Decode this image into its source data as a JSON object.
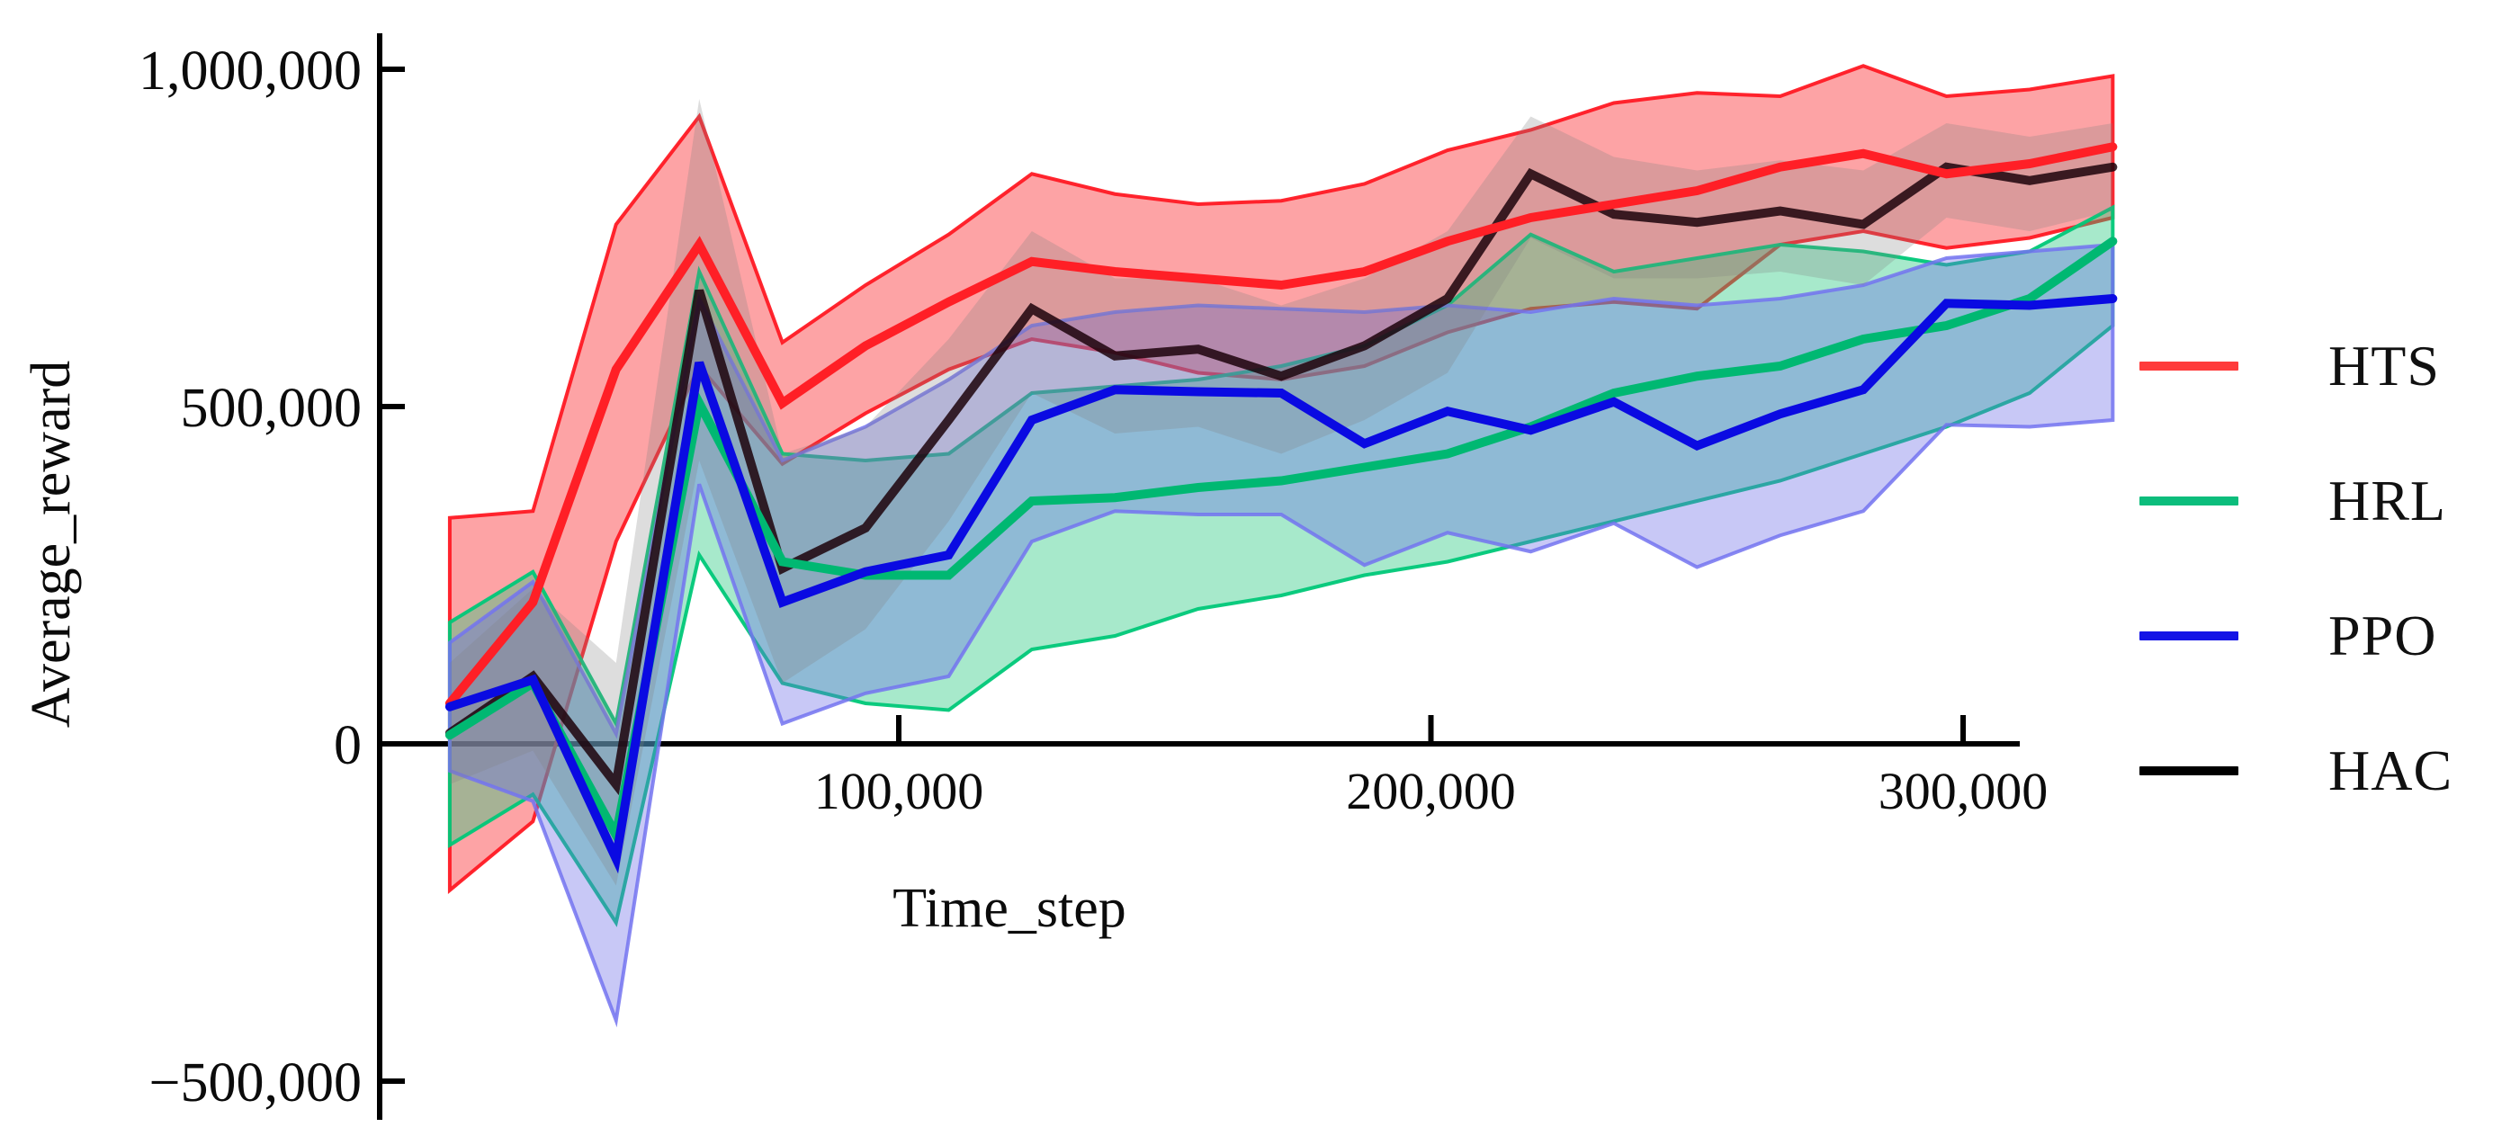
{
  "figure": {
    "background": "#ffffff",
    "axis_color": "#000000",
    "x_axis_title": "Time_step",
    "y_axis_title": "Average_reward",
    "legend": {
      "position": "right"
    }
  },
  "chart_data": {
    "type": "line",
    "title": "",
    "xlabel": "Time_step",
    "ylabel": "Average_reward",
    "grid": false,
    "legend_position": "right",
    "xlim": [
      0,
      335000
    ],
    "ylim": [
      -560000,
      1060000
    ],
    "x_ticks": [
      {
        "value": 100000,
        "label": "100,000"
      },
      {
        "value": 200000,
        "label": "200,000"
      },
      {
        "value": 300000,
        "label": "300,000"
      }
    ],
    "y_ticks": [
      {
        "value": 1000000,
        "label": "1,000,000"
      },
      {
        "value": 500000,
        "label": "500,000"
      },
      {
        "value": 0,
        "label": "0"
      },
      {
        "value": -500000,
        "label": "−500,000"
      }
    ],
    "x": [
      15625,
      31250,
      46875,
      62500,
      78125,
      93750,
      109375,
      125000,
      140625,
      156250,
      171875,
      187500,
      203125,
      218750,
      234375,
      250000,
      265625,
      281250,
      296875,
      312500,
      328125
    ],
    "series": [
      {
        "name": "HTS",
        "legend_color": "#ff3b3b",
        "line_color": "#ff1f26",
        "fill_color": "rgba(250,45,50,0.44)",
        "edge_color": "rgba(255,25,35,0.95)",
        "values": [
          60000,
          210000,
          555000,
          740000,
          505000,
          590000,
          655000,
          715000,
          700000,
          690000,
          680000,
          700000,
          745000,
          780000,
          800000,
          820000,
          855000,
          875000,
          845000,
          860000,
          885000
        ],
        "upper": [
          335000,
          345000,
          770000,
          930000,
          595000,
          680000,
          755000,
          845000,
          815000,
          800000,
          805000,
          830000,
          880000,
          910000,
          950000,
          965000,
          960000,
          1005000,
          960000,
          970000,
          990000
        ],
        "lower": [
          -217000,
          -115000,
          300000,
          560000,
          415000,
          490000,
          555000,
          600000,
          580000,
          550000,
          540000,
          560000,
          610000,
          645000,
          655000,
          645000,
          740000,
          760000,
          735000,
          750000,
          780000
        ]
      },
      {
        "name": "HRL",
        "legend_color": "#0cbd7c",
        "line_color": "#00b872",
        "fill_color": "rgba(35,200,125,0.40)",
        "edge_color": "rgba(0,200,120,0.95)",
        "values": [
          13000,
          90000,
          -135000,
          505000,
          270000,
          250000,
          250000,
          360000,
          365000,
          380000,
          390000,
          410000,
          430000,
          470000,
          520000,
          545000,
          560000,
          600000,
          620000,
          660000,
          745000
        ],
        "upper": [
          180000,
          255000,
          30000,
          700000,
          430000,
          420000,
          430000,
          520000,
          530000,
          540000,
          560000,
          590000,
          650000,
          755000,
          700000,
          720000,
          740000,
          730000,
          710000,
          730000,
          795000
        ],
        "lower": [
          -150000,
          -75000,
          -265000,
          280000,
          90000,
          60000,
          50000,
          140000,
          160000,
          200000,
          220000,
          250000,
          270000,
          300000,
          330000,
          360000,
          390000,
          430000,
          470000,
          520000,
          620000
        ]
      },
      {
        "name": "PPO",
        "legend_color": "#1414e6",
        "line_color": "#0a0ae2",
        "fill_color": "rgba(102,102,230,0.36)",
        "edge_color": "rgba(115,115,240,0.85)",
        "values": [
          55000,
          95000,
          -170000,
          565000,
          210000,
          255000,
          280000,
          480000,
          525000,
          522000,
          520000,
          445000,
          493000,
          465000,
          507000,
          442000,
          489000,
          525000,
          653000,
          650000,
          660000
        ],
        "upper": [
          150000,
          240000,
          15000,
          660000,
          420000,
          470000,
          540000,
          620000,
          640000,
          650000,
          645000,
          640000,
          650000,
          640000,
          660000,
          650000,
          660000,
          680000,
          720000,
          730000,
          740000
        ],
        "lower": [
          -40000,
          -85000,
          -410000,
          385000,
          30000,
          75000,
          100000,
          300000,
          345000,
          340000,
          340000,
          265000,
          313000,
          285000,
          327000,
          262000,
          309000,
          345000,
          473000,
          470000,
          480000
        ]
      },
      {
        "name": "HAC",
        "legend_color": "#000000",
        "line_color": "rgba(28,2,10,0.85)",
        "fill_color": "rgba(128,128,128,0.27)",
        "edge_color": "rgba(0,0,0,0)",
        "values": [
          16000,
          100000,
          -60000,
          672000,
          260000,
          320000,
          480000,
          645000,
          575000,
          585000,
          545000,
          590000,
          660000,
          845000,
          785000,
          773000,
          790000,
          770000,
          855000,
          835000,
          855000
        ],
        "upper": [
          120000,
          230000,
          120000,
          956000,
          430000,
          470000,
          600000,
          760000,
          690000,
          690000,
          650000,
          690000,
          760000,
          930000,
          870000,
          850000,
          865000,
          850000,
          920000,
          900000,
          920000
        ],
        "lower": [
          -60000,
          -10000,
          -210000,
          420000,
          90000,
          170000,
          330000,
          520000,
          460000,
          470000,
          430000,
          480000,
          550000,
          750000,
          690000,
          690000,
          700000,
          680000,
          780000,
          760000,
          790000
        ]
      }
    ]
  }
}
